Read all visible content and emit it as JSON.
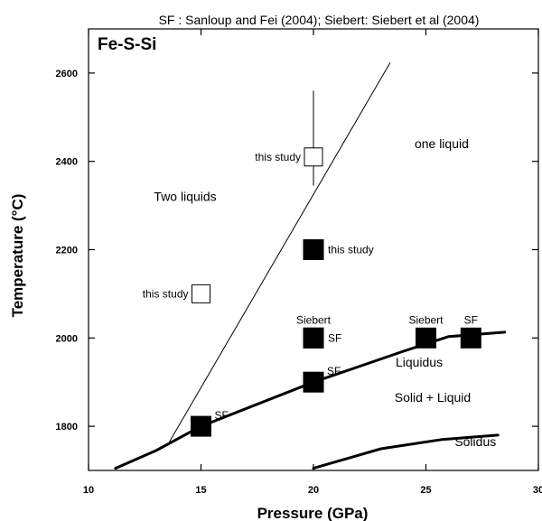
{
  "chart_data": {
    "type": "scatter",
    "top_note": "SF : Sanloup and Fei (2004); Siebert: Siebert et al (2004)",
    "panel_label": "Fe-S-Si",
    "xlabel": "Pressure (GPa)",
    "ylabel": "Temperature (°C)",
    "xlim": [
      10,
      30
    ],
    "ylim": [
      1700,
      2700
    ],
    "x_ticks": [
      10,
      15,
      20,
      25,
      30
    ],
    "x_tick_labels": [
      "10",
      "15",
      "20",
      "25",
      "30"
    ],
    "y_ticks": [
      1800,
      2000,
      2200,
      2400,
      2600
    ],
    "y_tick_labels": [
      "1800",
      "2000",
      "2200",
      "2400",
      "2600"
    ],
    "series": [
      {
        "style": "filled-square",
        "points": [
          {
            "x": 15,
            "y": 1800,
            "label": "SF",
            "anchor": "right-up"
          },
          {
            "x": 20,
            "y": 1900,
            "label": "SF",
            "anchor": "right-up"
          },
          {
            "x": 20,
            "y": 2000,
            "label": "Siebert",
            "anchor": "above"
          },
          {
            "x": 20,
            "y": 2000,
            "label": "SF",
            "anchor": "right"
          },
          {
            "x": 20,
            "y": 2200,
            "label": "this study",
            "anchor": "right"
          },
          {
            "x": 25,
            "y": 2000,
            "label": "Siebert",
            "anchor": "above"
          },
          {
            "x": 27,
            "y": 2000,
            "label": "SF",
            "anchor": "above"
          }
        ]
      },
      {
        "style": "open-square",
        "points": [
          {
            "x": 15,
            "y": 2100,
            "label": "this study",
            "anchor": "left"
          },
          {
            "x": 20,
            "y": 2410,
            "label": "this study",
            "anchor": "left",
            "error_low": 2345,
            "error_high": 2560
          }
        ]
      }
    ],
    "lines": [
      {
        "name": "miscibility",
        "style": "thin",
        "points": [
          [
            13.6,
            1765
          ],
          [
            23.4,
            2623
          ]
        ]
      },
      {
        "name": "liquidus",
        "style": "thick",
        "points": [
          [
            11.2,
            1705
          ],
          [
            13,
            1745
          ],
          [
            15,
            1800
          ],
          [
            20,
            1900
          ],
          [
            24,
            1970
          ],
          [
            26,
            2003
          ],
          [
            28.5,
            2013
          ]
        ]
      },
      {
        "name": "solidus",
        "style": "thick",
        "points": [
          [
            20,
            1705
          ],
          [
            23,
            1749
          ],
          [
            25.7,
            1770
          ],
          [
            28.2,
            1780
          ]
        ]
      }
    ],
    "region_labels": [
      {
        "text": "one liquid",
        "x": 25.7,
        "y": 2430
      },
      {
        "text": "Two liquids",
        "x": 14.3,
        "y": 2310
      },
      {
        "text": "Liquidus",
        "x": 24.7,
        "y": 1935
      },
      {
        "text": "Solid + Liquid",
        "x": 25.3,
        "y": 1855
      },
      {
        "text": "Solidus",
        "x": 27.2,
        "y": 1755
      }
    ]
  }
}
